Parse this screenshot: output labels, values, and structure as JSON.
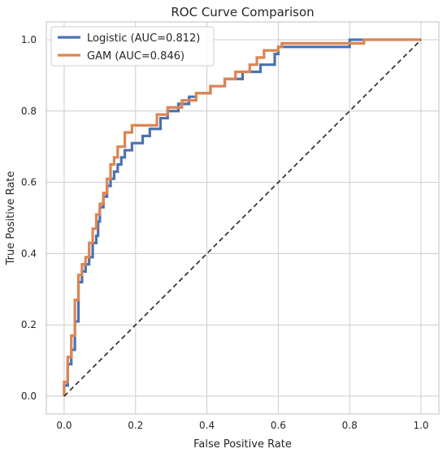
{
  "chart_data": {
    "type": "line",
    "title": "ROC Curve Comparison",
    "xlabel": "False Positive Rate",
    "ylabel": "True Positive Rate",
    "xlim": [
      -0.05,
      1.05
    ],
    "ylim": [
      -0.05,
      1.05
    ],
    "xticks": [
      0.0,
      0.2,
      0.4,
      0.6,
      0.8,
      1.0
    ],
    "yticks": [
      0.0,
      0.2,
      0.4,
      0.6,
      0.8,
      1.0
    ],
    "xtick_labels": [
      "0.0",
      "0.2",
      "0.4",
      "0.6",
      "0.8",
      "1.0"
    ],
    "ytick_labels": [
      "0.0",
      "0.2",
      "0.4",
      "0.6",
      "0.8",
      "1.0"
    ],
    "grid": true,
    "legend_position": "top-left",
    "series": [
      {
        "name": "Logistic (AUC=0.812)",
        "color": "#4c72b0",
        "x": [
          0,
          0,
          0.01,
          0.01,
          0.02,
          0.02,
          0.03,
          0.03,
          0.04,
          0.04,
          0.05,
          0.05,
          0.06,
          0.06,
          0.07,
          0.07,
          0.08,
          0.08,
          0.09,
          0.09,
          0.095,
          0.095,
          0.1,
          0.1,
          0.11,
          0.11,
          0.12,
          0.12,
          0.13,
          0.13,
          0.14,
          0.14,
          0.15,
          0.15,
          0.16,
          0.16,
          0.17,
          0.17,
          0.19,
          0.19,
          0.22,
          0.22,
          0.24,
          0.24,
          0.27,
          0.27,
          0.29,
          0.29,
          0.32,
          0.32,
          0.35,
          0.35,
          0.37,
          0.37,
          0.41,
          0.41,
          0.45,
          0.45,
          0.5,
          0.5,
          0.55,
          0.55,
          0.59,
          0.59,
          0.6,
          0.6,
          0.7,
          0.7,
          0.8,
          0.8,
          0.81,
          0.81,
          1.0
        ],
        "y": [
          0,
          0.03,
          0.03,
          0.09,
          0.09,
          0.13,
          0.13,
          0.21,
          0.21,
          0.32,
          0.32,
          0.35,
          0.35,
          0.37,
          0.37,
          0.39,
          0.39,
          0.43,
          0.43,
          0.45,
          0.45,
          0.49,
          0.49,
          0.53,
          0.53,
          0.56,
          0.56,
          0.59,
          0.59,
          0.61,
          0.61,
          0.63,
          0.63,
          0.65,
          0.65,
          0.67,
          0.67,
          0.69,
          0.69,
          0.71,
          0.71,
          0.73,
          0.73,
          0.75,
          0.75,
          0.78,
          0.78,
          0.8,
          0.8,
          0.82,
          0.82,
          0.84,
          0.84,
          0.85,
          0.85,
          0.87,
          0.87,
          0.89,
          0.89,
          0.91,
          0.91,
          0.93,
          0.93,
          0.96,
          0.96,
          0.98,
          0.98,
          0.98,
          0.98,
          1.0,
          1.0,
          1.0,
          1.0
        ]
      },
      {
        "name": "GAM (AUC=0.846)",
        "color": "#dd8452",
        "x": [
          0,
          0,
          0.01,
          0.01,
          0.02,
          0.02,
          0.03,
          0.03,
          0.04,
          0.04,
          0.05,
          0.05,
          0.06,
          0.06,
          0.07,
          0.07,
          0.08,
          0.08,
          0.09,
          0.09,
          0.1,
          0.1,
          0.11,
          0.11,
          0.12,
          0.12,
          0.13,
          0.13,
          0.14,
          0.14,
          0.15,
          0.15,
          0.17,
          0.17,
          0.19,
          0.19,
          0.26,
          0.26,
          0.29,
          0.29,
          0.33,
          0.33,
          0.37,
          0.37,
          0.41,
          0.41,
          0.45,
          0.45,
          0.48,
          0.48,
          0.52,
          0.52,
          0.54,
          0.54,
          0.56,
          0.56,
          0.6,
          0.6,
          0.61,
          0.61,
          0.84,
          0.84,
          0.85,
          0.85,
          1.0
        ],
        "y": [
          0,
          0.04,
          0.04,
          0.11,
          0.11,
          0.17,
          0.17,
          0.27,
          0.27,
          0.34,
          0.34,
          0.37,
          0.37,
          0.39,
          0.39,
          0.43,
          0.43,
          0.47,
          0.47,
          0.51,
          0.51,
          0.54,
          0.54,
          0.57,
          0.57,
          0.61,
          0.61,
          0.65,
          0.65,
          0.67,
          0.67,
          0.7,
          0.7,
          0.74,
          0.74,
          0.76,
          0.76,
          0.79,
          0.79,
          0.81,
          0.81,
          0.83,
          0.83,
          0.85,
          0.85,
          0.87,
          0.87,
          0.89,
          0.89,
          0.91,
          0.91,
          0.93,
          0.93,
          0.95,
          0.95,
          0.97,
          0.97,
          0.98,
          0.98,
          0.99,
          0.99,
          1.0,
          1.0,
          1.0,
          1.0
        ]
      }
    ],
    "reference_line": {
      "color": "#262626",
      "x": [
        0,
        1
      ],
      "y": [
        0,
        1
      ]
    }
  }
}
